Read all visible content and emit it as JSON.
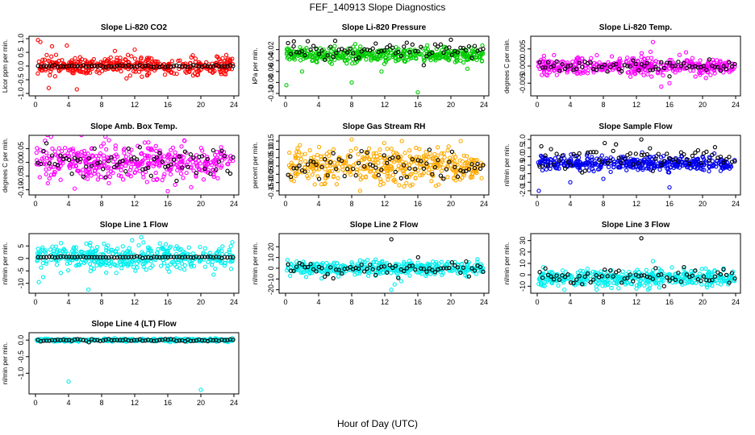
{
  "title": "FEF_140913  Slope Diagnostics",
  "xlabel": "Hour of Day (UTC)",
  "chart_data": [
    {
      "type": "scatter",
      "title": "Slope Li-820 CO2",
      "ylabel": "Licor ppm per min.",
      "xlim": [
        0,
        24
      ],
      "ylim": [
        -1,
        1
      ],
      "xticks": [
        0,
        4,
        8,
        12,
        16,
        20,
        24
      ],
      "yticks": [
        -1,
        -0.5,
        0,
        0.5,
        1
      ],
      "ytick_labels": [
        "-1.0",
        "-0.5",
        "0.0",
        "0.5",
        "1.0"
      ],
      "color": "#ff0000",
      "center": 0.0,
      "spread": 0.15,
      "max_abs_dev": 0.8,
      "black_spread": 0.02,
      "outliers": [
        [
          0.3,
          0.95
        ],
        [
          0.6,
          0.88
        ],
        [
          2.0,
          0.72
        ],
        [
          1.6,
          -0.8
        ],
        [
          3.8,
          0.75
        ],
        [
          5.0,
          -0.85
        ],
        [
          9.6,
          0.55
        ],
        [
          11.0,
          -0.45
        ],
        [
          12.0,
          0.6
        ],
        [
          13.5,
          -0.35
        ],
        [
          23.0,
          -0.3
        ]
      ],
      "black_outliers": []
    },
    {
      "type": "scatter",
      "title": "Slope Li-820 Pressure",
      "ylabel": "kPa per min.",
      "xlim": [
        0,
        24
      ],
      "ylim": [
        -0.1,
        0
      ],
      "xticks": [
        0,
        4,
        8,
        12,
        16,
        20,
        24
      ],
      "yticks": [
        -0.1,
        -0.08,
        -0.06,
        -0.04,
        -0.02
      ],
      "ytick_labels": [
        "-0.10",
        "-0.08",
        "-0.06",
        "-0.04",
        "-0.02"
      ],
      "color": "#00cc00",
      "center": -0.03,
      "spread": 0.006,
      "max_abs_dev": 0.02,
      "black_spread": 0.008,
      "black_center": -0.022,
      "outliers": [
        [
          0.1,
          -0.085
        ],
        [
          8.0,
          -0.08
        ],
        [
          16.0,
          -0.098
        ],
        [
          2.0,
          -0.06
        ],
        [
          11.6,
          -0.06
        ],
        [
          22.0,
          -0.055
        ]
      ],
      "black_outliers": [
        [
          1.0,
          -0.005
        ],
        [
          20.0,
          -0.002
        ],
        [
          6.0,
          -0.004
        ]
      ]
    },
    {
      "type": "scatter",
      "title": "Slope Li-820 Temp.",
      "ylabel": "degrees C per min.",
      "xlim": [
        0,
        24
      ],
      "ylim": [
        -0.008,
        0.008
      ],
      "xticks": [
        0,
        4,
        8,
        12,
        16,
        20,
        24
      ],
      "yticks": [
        -0.005,
        0,
        0.005
      ],
      "ytick_labels": [
        "-0.005",
        "0.000",
        "0.005"
      ],
      "color": "#ff00ff",
      "center": 0.0,
      "spread": 0.0012,
      "max_abs_dev": 0.005,
      "black_spread": 0.0008,
      "outliers": [
        [
          14.0,
          0.007
        ],
        [
          15.0,
          -0.006
        ],
        [
          16.0,
          -0.005
        ],
        [
          18.0,
          0.004
        ]
      ],
      "black_outliers": [
        [
          16.0,
          -0.003
        ]
      ]
    },
    {
      "type": "scatter",
      "title": "Slope Amb. Box Temp.",
      "ylabel": "degrees C per min.",
      "xlim": [
        0,
        24
      ],
      "ylim": [
        -0.11,
        0.09
      ],
      "xticks": [
        0,
        4,
        8,
        12,
        16,
        20,
        24
      ],
      "yticks": [
        -0.1,
        -0.05,
        0,
        0.05
      ],
      "ytick_labels": [
        "-0.10",
        "-0.05",
        "0.00",
        "0.05"
      ],
      "color": "#ff00ff",
      "center": 0.0,
      "spread": 0.035,
      "max_abs_dev": 0.1,
      "black_spread": 0.03,
      "outliers": [
        [
          16.0,
          -0.105
        ],
        [
          18.0,
          0.08
        ]
      ],
      "black_outliers": []
    },
    {
      "type": "scatter",
      "title": "Slope Gas Stream RH",
      "ylabel": "percent per min.",
      "xlim": [
        0,
        24
      ],
      "ylim": [
        -0.16,
        0.17
      ],
      "xticks": [
        0,
        4,
        8,
        12,
        16,
        20,
        24
      ],
      "yticks": [
        -0.15,
        -0.1,
        -0.05,
        0,
        0.05,
        0.1,
        0.15
      ],
      "ytick_labels": [
        "-0.15",
        "-0.10",
        "-0.05",
        "0.00",
        "0.05",
        "0.10",
        "0.15"
      ],
      "color": "#ffaa00",
      "center": 0.0,
      "spread": 0.05,
      "max_abs_dev": 0.15,
      "black_spread": 0.04,
      "outliers": [
        [
          8.0,
          0.16
        ],
        [
          9.0,
          -0.15
        ]
      ],
      "black_outliers": []
    },
    {
      "type": "scatter",
      "title": "Slope Sample Flow",
      "ylabel": "nl/min per min.",
      "xlim": [
        0,
        24
      ],
      "ylim": [
        -2.1,
        1.1
      ],
      "xticks": [
        0,
        4,
        8,
        12,
        16,
        20,
        24
      ],
      "yticks": [
        -2,
        -1.5,
        -1,
        -0.5,
        0,
        0.5,
        1
      ],
      "ytick_labels": [
        "-2.0",
        "-1.5",
        "-1.0",
        "-0.5",
        "0.0",
        "0.5",
        "1.0"
      ],
      "color": "#0000ee",
      "center": -0.4,
      "spread": 0.2,
      "max_abs_dev": 0.9,
      "black_spread": 0.35,
      "black_center": -0.1,
      "outliers": [
        [
          0.2,
          -2.0
        ],
        [
          4.0,
          -1.5
        ],
        [
          8.0,
          -1.3
        ],
        [
          16.0,
          -1.8
        ]
      ],
      "black_outliers": [
        [
          12.6,
          1.0
        ],
        [
          0.5,
          0.6
        ]
      ]
    },
    {
      "type": "scatter",
      "title": "Slope Line 1 Flow",
      "ylabel": "nl/min per min.",
      "xlim": [
        0,
        24
      ],
      "ylim": [
        -13,
        9
      ],
      "xticks": [
        0,
        4,
        8,
        12,
        16,
        20,
        24
      ],
      "yticks": [
        -10,
        -5,
        0,
        5
      ],
      "ytick_labels": [
        "-10",
        "-5",
        "0",
        "5"
      ],
      "color": "#00eeee",
      "center": 0.5,
      "spread": 2.5,
      "max_abs_dev": 8,
      "black_spread": 0.1,
      "outliers": [
        [
          6.4,
          -12.5
        ],
        [
          12.8,
          8.5
        ],
        [
          0.4,
          -9.5
        ]
      ],
      "black_outliers": []
    },
    {
      "type": "scatter",
      "title": "Slope Line 2 Flow",
      "ylabel": "nl/min per min.",
      "xlim": [
        0,
        24
      ],
      "ylim": [
        -21,
        30
      ],
      "xticks": [
        0,
        4,
        8,
        12,
        16,
        20,
        24
      ],
      "yticks": [
        -20,
        -10,
        0,
        10,
        20
      ],
      "ytick_labels": [
        "-20",
        "-10",
        "0",
        "10",
        "20"
      ],
      "color": "#00eeee",
      "center": 0.0,
      "spread": 3.0,
      "max_abs_dev": 10,
      "black_spread": 3.5,
      "outliers": [
        [
          12.8,
          -20.0
        ],
        [
          13.2,
          -15.0
        ],
        [
          14.0,
          -12.0
        ],
        [
          13.6,
          -8.0
        ]
      ],
      "black_outliers": [
        [
          12.8,
          27.0
        ]
      ]
    },
    {
      "type": "scatter",
      "title": "Slope Line 3 Flow",
      "ylabel": "nl/min per min.",
      "xlim": [
        0,
        24
      ],
      "ylim": [
        -14,
        34
      ],
      "xticks": [
        0,
        4,
        8,
        12,
        16,
        20,
        24
      ],
      "yticks": [
        -10,
        0,
        10,
        20,
        30
      ],
      "ytick_labels": [
        "-10",
        "0",
        "10",
        "20",
        "30"
      ],
      "color": "#00eeee",
      "center": -3.0,
      "spread": 3.5,
      "max_abs_dev": 10,
      "black_spread": 3.5,
      "black_center": -2.0,
      "outliers": [
        [
          13.4,
          -13.0
        ],
        [
          12.0,
          -12.0
        ],
        [
          14.0,
          12.0
        ]
      ],
      "black_outliers": [
        [
          12.6,
          32.0
        ]
      ]
    },
    {
      "type": "scatter",
      "title": "Slope Line 4 (LT) Flow",
      "ylabel": "nl/min per min.",
      "xlim": [
        0,
        24
      ],
      "ylim": [
        -1.55,
        0.15
      ],
      "xticks": [
        0,
        4,
        8,
        12,
        16,
        20,
        24
      ],
      "yticks": [
        -1.0,
        -0.5,
        0.0
      ],
      "ytick_labels": [
        "-1.0",
        "-0.5",
        "0.0"
      ],
      "color": "#00eeee",
      "center": 0.0,
      "spread": 0.02,
      "max_abs_dev": 0.08,
      "black_spread": 0.02,
      "outliers": [
        [
          4.0,
          -1.25
        ],
        [
          20.0,
          -1.5
        ],
        [
          23.8,
          0.06
        ]
      ],
      "black_outliers": []
    }
  ]
}
